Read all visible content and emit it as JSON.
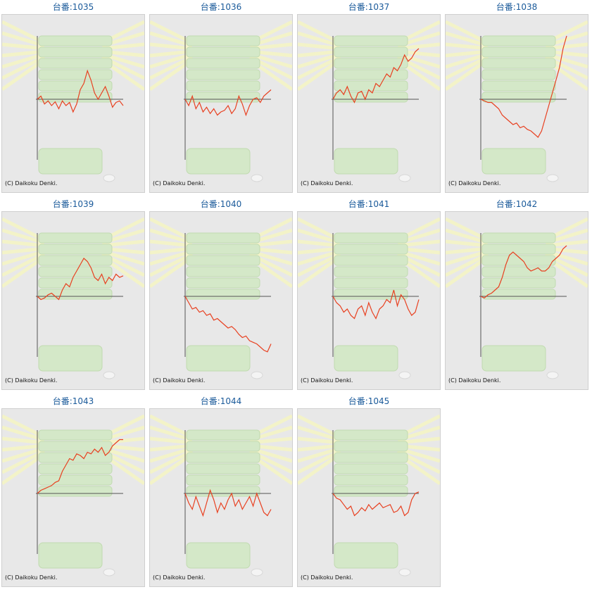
{
  "machines": [
    {
      "title": "台番:1035",
      "values": [
        0,
        10,
        -15,
        -5,
        -20,
        -8,
        -30,
        -5,
        -20,
        -10,
        -40,
        -15,
        30,
        50,
        90,
        60,
        20,
        0,
        20,
        40,
        10,
        -25,
        -10,
        -5,
        -20
      ]
    },
    {
      "title": "台番:1036",
      "values": [
        0,
        -20,
        10,
        -30,
        -10,
        -40,
        -25,
        -45,
        -30,
        -50,
        -40,
        -35,
        -20,
        -45,
        -30,
        10,
        -15,
        -50,
        -20,
        0,
        5,
        -10,
        10,
        20,
        30
      ]
    },
    {
      "title": "台番:1037",
      "values": [
        0,
        20,
        30,
        15,
        40,
        10,
        -10,
        20,
        25,
        0,
        30,
        20,
        50,
        40,
        60,
        80,
        70,
        100,
        90,
        110,
        140,
        120,
        130,
        150,
        160
      ]
    },
    {
      "title": "台番:1038",
      "values": [
        0,
        -5,
        -10,
        -10,
        -20,
        -30,
        -50,
        -60,
        -70,
        -80,
        -75,
        -90,
        -85,
        -95,
        -100,
        -110,
        -120,
        -100,
        -60,
        -20,
        20,
        60,
        100,
        160,
        200
      ]
    },
    {
      "title": "台番:1039",
      "values": [
        0,
        -10,
        -5,
        5,
        10,
        0,
        -10,
        20,
        40,
        30,
        60,
        80,
        100,
        120,
        110,
        90,
        60,
        50,
        70,
        40,
        60,
        50,
        70,
        60,
        65
      ]
    },
    {
      "title": "台番:1040",
      "values": [
        0,
        -20,
        -40,
        -35,
        -50,
        -45,
        -60,
        -55,
        -75,
        -70,
        -80,
        -90,
        -100,
        -95,
        -105,
        -120,
        -130,
        -125,
        -140,
        -145,
        -150,
        -160,
        -170,
        -175,
        -150
      ]
    },
    {
      "title": "台番:1041",
      "values": [
        0,
        -20,
        -30,
        -50,
        -40,
        -60,
        -70,
        -40,
        -30,
        -60,
        -20,
        -50,
        -70,
        -40,
        -30,
        -10,
        -20,
        20,
        -30,
        5,
        -10,
        -40,
        -60,
        -50,
        -10
      ]
    },
    {
      "title": "台番:1042",
      "values": [
        0,
        -5,
        5,
        10,
        20,
        30,
        60,
        100,
        130,
        140,
        130,
        120,
        110,
        90,
        80,
        85,
        90,
        80,
        80,
        90,
        110,
        120,
        130,
        150,
        160
      ]
    },
    {
      "title": "台番:1043",
      "values": [
        0,
        10,
        15,
        20,
        25,
        35,
        40,
        70,
        90,
        110,
        105,
        125,
        120,
        110,
        130,
        125,
        140,
        130,
        145,
        120,
        130,
        150,
        160,
        170,
        170
      ]
    },
    {
      "title": "台番:1044",
      "values": [
        0,
        -30,
        -50,
        -10,
        -40,
        -70,
        -30,
        10,
        -20,
        -60,
        -30,
        -50,
        -20,
        0,
        -40,
        -20,
        -50,
        -30,
        -10,
        -40,
        0,
        -30,
        -60,
        -70,
        -50
      ]
    },
    {
      "title": "台番:1045",
      "values": [
        0,
        -15,
        -20,
        -35,
        -50,
        -40,
        -70,
        -60,
        -45,
        -55,
        -35,
        -50,
        -40,
        -30,
        -45,
        -40,
        -35,
        -60,
        -55,
        -40,
        -70,
        -60,
        -20,
        0,
        5
      ]
    }
  ],
  "copyright": "(C) Daikoku Denki.",
  "colors": {
    "title": "#1a5a9a",
    "line": "#e84020",
    "axis": "#555555",
    "background": "#e8e8e8"
  }
}
